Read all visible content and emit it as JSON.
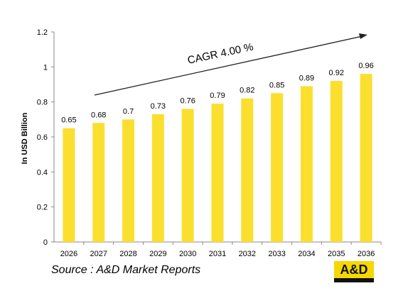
{
  "chart_data": {
    "type": "bar",
    "categories": [
      "2026",
      "2027",
      "2028",
      "2029",
      "2030",
      "2031",
      "2032",
      "2033",
      "2034",
      "2035",
      "2036"
    ],
    "values": [
      0.65,
      0.68,
      0.7,
      0.73,
      0.76,
      0.79,
      0.82,
      0.85,
      0.89,
      0.92,
      0.96
    ],
    "data_labels": [
      "0.65",
      "0.68",
      "0.7",
      "0.73",
      "0.76",
      "0.79",
      "0.82",
      "0.85",
      "0.89",
      "0.92",
      "0.96"
    ],
    "ylabel": "In USD Billion",
    "xlabel": "",
    "ylim": [
      0,
      1.2
    ],
    "yticks": [
      0,
      0.2,
      0.4,
      0.6,
      0.8,
      1,
      1.2
    ],
    "ytick_labels": [
      "0",
      "0.2",
      "0.4",
      "0.6",
      "0.8",
      "1",
      "1.2"
    ],
    "grid": false,
    "bar_color": "#fbdf2f",
    "annotation": "CAGR  4.00 %"
  },
  "footer": {
    "source": "Source : A&D Market Reports",
    "logo_text": "A&D",
    "logo_color": "#f5d800"
  }
}
